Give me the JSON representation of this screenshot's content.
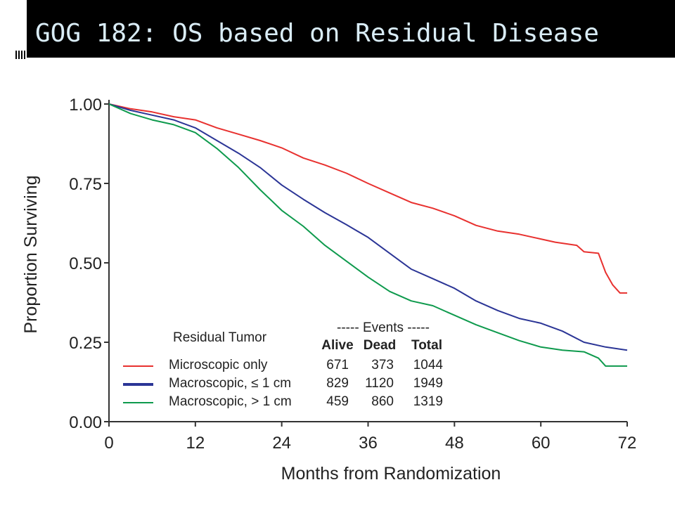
{
  "slide": {
    "title": "GOG 182: OS based on Residual Disease"
  },
  "chart_data": {
    "type": "line",
    "xlabel": "Months from Randomization",
    "ylabel": "Proportion Surviving",
    "xlim": [
      0,
      72
    ],
    "ylim": [
      0,
      1
    ],
    "x_ticks": [
      "0",
      "12",
      "24",
      "36",
      "48",
      "60",
      "72"
    ],
    "y_ticks": [
      "0.00",
      "0.25",
      "0.50",
      "0.75",
      "1.00"
    ],
    "grid": false,
    "series": [
      {
        "name": "Microscopic only",
        "color": "#e8312f",
        "points": [
          [
            0,
            1.0
          ],
          [
            3,
            0.985
          ],
          [
            6,
            0.975
          ],
          [
            9,
            0.96
          ],
          [
            12,
            0.95
          ],
          [
            15,
            0.925
          ],
          [
            18,
            0.905
          ],
          [
            21,
            0.885
          ],
          [
            24,
            0.862
          ],
          [
            27,
            0.83
          ],
          [
            30,
            0.808
          ],
          [
            33,
            0.782
          ],
          [
            36,
            0.75
          ],
          [
            39,
            0.72
          ],
          [
            42,
            0.69
          ],
          [
            45,
            0.672
          ],
          [
            48,
            0.648
          ],
          [
            51,
            0.618
          ],
          [
            54,
            0.6
          ],
          [
            57,
            0.59
          ],
          [
            60,
            0.575
          ],
          [
            62,
            0.565
          ],
          [
            65,
            0.555
          ],
          [
            66,
            0.535
          ],
          [
            68,
            0.53
          ],
          [
            68.5,
            0.5
          ],
          [
            69,
            0.47
          ],
          [
            70,
            0.43
          ],
          [
            71,
            0.405
          ],
          [
            72,
            0.405
          ]
        ]
      },
      {
        "name": "Macroscopic, ≤ 1 cm",
        "color": "#2b3596",
        "points": [
          [
            0,
            1.0
          ],
          [
            3,
            0.98
          ],
          [
            6,
            0.965
          ],
          [
            9,
            0.95
          ],
          [
            12,
            0.925
          ],
          [
            15,
            0.885
          ],
          [
            18,
            0.845
          ],
          [
            21,
            0.8
          ],
          [
            24,
            0.745
          ],
          [
            27,
            0.7
          ],
          [
            30,
            0.658
          ],
          [
            33,
            0.62
          ],
          [
            36,
            0.58
          ],
          [
            39,
            0.53
          ],
          [
            42,
            0.48
          ],
          [
            45,
            0.45
          ],
          [
            48,
            0.42
          ],
          [
            51,
            0.38
          ],
          [
            54,
            0.35
          ],
          [
            57,
            0.325
          ],
          [
            60,
            0.31
          ],
          [
            63,
            0.285
          ],
          [
            66,
            0.25
          ],
          [
            69,
            0.235
          ],
          [
            72,
            0.225
          ]
        ]
      },
      {
        "name": "Macroscopic, > 1 cm",
        "color": "#0e9a4d",
        "points": [
          [
            0,
            1.0
          ],
          [
            3,
            0.97
          ],
          [
            6,
            0.95
          ],
          [
            9,
            0.935
          ],
          [
            12,
            0.91
          ],
          [
            15,
            0.86
          ],
          [
            18,
            0.8
          ],
          [
            21,
            0.73
          ],
          [
            24,
            0.665
          ],
          [
            27,
            0.615
          ],
          [
            30,
            0.555
          ],
          [
            33,
            0.505
          ],
          [
            36,
            0.455
          ],
          [
            39,
            0.41
          ],
          [
            42,
            0.38
          ],
          [
            45,
            0.365
          ],
          [
            48,
            0.335
          ],
          [
            51,
            0.305
          ],
          [
            54,
            0.28
          ],
          [
            57,
            0.255
          ],
          [
            60,
            0.235
          ],
          [
            63,
            0.225
          ],
          [
            66,
            0.22
          ],
          [
            68,
            0.2
          ],
          [
            69,
            0.175
          ],
          [
            72,
            0.175
          ]
        ]
      }
    ],
    "legend": {
      "placement": "bottom-center",
      "title": "Residual Tumor",
      "events_header": "----- Events -----",
      "columns": [
        "Alive",
        "Dead",
        "Total"
      ],
      "rows": [
        {
          "label": "Microscopic only",
          "alive": "671",
          "dead": "373",
          "total": "1044"
        },
        {
          "label": "Macroscopic, ≤ 1 cm",
          "alive": "829",
          "dead": "1120",
          "total": "1949"
        },
        {
          "label": "Macroscopic, > 1 cm",
          "alive": "459",
          "dead": "860",
          "total": "1319"
        }
      ]
    }
  }
}
